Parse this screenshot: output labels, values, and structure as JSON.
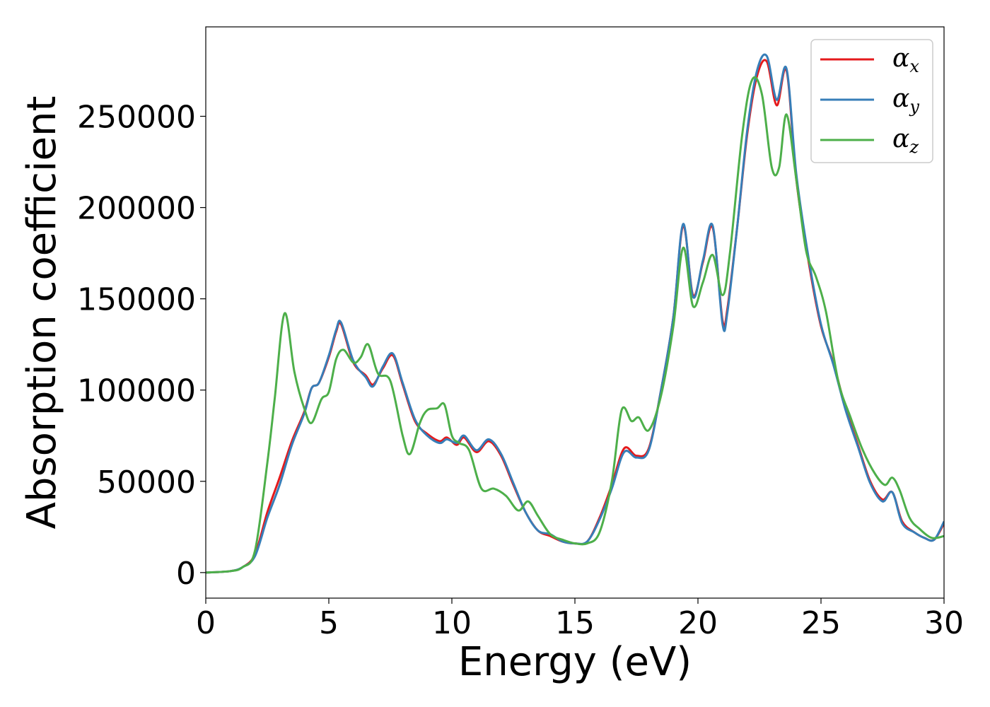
{
  "chart_data": {
    "type": "line",
    "title": "",
    "xlabel": "Energy (eV)",
    "ylabel": "Absorption coefficient",
    "xlim": [
      0,
      30
    ],
    "ylim": [
      -14000,
      299000
    ],
    "xticks": [
      0,
      5,
      10,
      15,
      20,
      25,
      30
    ],
    "xtick_labels": [
      "0",
      "5",
      "10",
      "15",
      "20",
      "25",
      "30"
    ],
    "yticks": [
      0,
      50000,
      100000,
      150000,
      200000,
      250000
    ],
    "ytick_labels": [
      "0",
      "50000",
      "100000",
      "150000",
      "200000",
      "250000"
    ],
    "grid": false,
    "legend_position": "top-right",
    "series": [
      {
        "name": "α_x",
        "base": "α",
        "sub": "x",
        "color": "#e41a1c",
        "x": [
          0,
          1,
          1.5,
          2,
          2.5,
          3,
          3.5,
          4,
          4.3,
          4.6,
          5,
          5.3,
          5.5,
          6,
          6.5,
          6.8,
          7.2,
          7.6,
          8,
          8.5,
          9,
          9.5,
          9.8,
          10.2,
          10.5,
          11,
          11.5,
          12,
          12.5,
          13,
          13.5,
          14,
          14.5,
          15,
          15.5,
          16,
          16.5,
          17,
          17.5,
          18,
          18.5,
          19,
          19.4,
          19.8,
          20.2,
          20.6,
          21,
          21.2,
          21.6,
          22,
          22.4,
          22.8,
          23.2,
          23.6,
          24,
          24.5,
          25,
          25.5,
          26,
          26.5,
          27,
          27.5,
          27.9,
          28.3,
          28.8,
          29.2,
          29.6,
          30
        ],
        "values": [
          0,
          800,
          3000,
          10000,
          33000,
          52000,
          72000,
          88000,
          101000,
          104000,
          118000,
          132000,
          136000,
          115000,
          108000,
          103000,
          112000,
          119000,
          103000,
          83000,
          76000,
          72000,
          74000,
          70000,
          74000,
          66000,
          72000,
          64000,
          48000,
          33000,
          23000,
          20000,
          17000,
          16000,
          17000,
          30000,
          48000,
          68000,
          64000,
          68000,
          100000,
          140000,
          190000,
          152000,
          170000,
          189000,
          138000,
          145000,
          190000,
          240000,
          272000,
          280000,
          256000,
          275000,
          215000,
          170000,
          135000,
          115000,
          90000,
          70000,
          50000,
          40000,
          44000,
          28000,
          22000,
          19000,
          18000,
          27000
        ]
      },
      {
        "name": "α_y",
        "base": "α",
        "sub": "y",
        "color": "#377eb8",
        "x": [
          0,
          1,
          1.5,
          2,
          2.5,
          3,
          3.5,
          4,
          4.3,
          4.6,
          5,
          5.3,
          5.5,
          6,
          6.5,
          6.8,
          7.2,
          7.6,
          8,
          8.5,
          9,
          9.5,
          9.8,
          10.2,
          10.5,
          11,
          11.5,
          12,
          12.5,
          13,
          13.5,
          14,
          14.5,
          15,
          15.5,
          16,
          16.5,
          17,
          17.5,
          18,
          18.5,
          19,
          19.4,
          19.8,
          20.2,
          20.6,
          21,
          21.2,
          21.6,
          22,
          22.4,
          22.8,
          23.2,
          23.6,
          24,
          24.5,
          25,
          25.5,
          26,
          26.5,
          27,
          27.5,
          27.9,
          28.3,
          28.8,
          29.2,
          29.6,
          30
        ],
        "values": [
          0,
          800,
          3000,
          9000,
          30000,
          48000,
          70000,
          87000,
          101000,
          104000,
          119000,
          133000,
          137000,
          116000,
          107000,
          102000,
          113000,
          120000,
          104000,
          84000,
          75000,
          71000,
          73000,
          71000,
          75000,
          67000,
          73000,
          65000,
          49000,
          33000,
          23000,
          21000,
          17000,
          16000,
          17000,
          29000,
          46000,
          66000,
          63000,
          67000,
          100000,
          140000,
          191000,
          151000,
          171000,
          190000,
          136000,
          143000,
          190000,
          242000,
          275000,
          283000,
          259000,
          276000,
          218000,
          172000,
          136000,
          114000,
          89000,
          69000,
          49000,
          39000,
          44000,
          27000,
          22000,
          19000,
          18000,
          28000
        ]
      },
      {
        "name": "α_z",
        "base": "α",
        "sub": "z",
        "color": "#4daf4a",
        "x": [
          0,
          1,
          1.5,
          2,
          2.5,
          2.8,
          3.2,
          3.6,
          4,
          4.3,
          4.7,
          5,
          5.3,
          5.6,
          6,
          6.3,
          6.6,
          7,
          7.5,
          8,
          8.3,
          8.7,
          9,
          9.4,
          9.7,
          10,
          10.3,
          10.7,
          11.2,
          11.7,
          12.2,
          12.7,
          13.1,
          13.5,
          14,
          14.5,
          15,
          15.5,
          16,
          16.5,
          16.9,
          17.3,
          17.6,
          18,
          18.5,
          19,
          19.4,
          19.8,
          20.2,
          20.6,
          21,
          21.3,
          21.8,
          22.2,
          22.6,
          23,
          23.3,
          23.6,
          24,
          24.4,
          24.8,
          25.2,
          25.7,
          26.2,
          26.7,
          27.2,
          27.6,
          27.9,
          28.2,
          28.6,
          29,
          29.5,
          30
        ],
        "values": [
          0,
          800,
          3000,
          12000,
          60000,
          95000,
          142000,
          110000,
          90000,
          82000,
          95000,
          99000,
          117000,
          122000,
          115000,
          118000,
          125000,
          109000,
          105000,
          75000,
          65000,
          82000,
          89000,
          90000,
          92000,
          75000,
          71000,
          67000,
          46000,
          46000,
          42000,
          34000,
          39000,
          31000,
          21000,
          18000,
          16000,
          16000,
          22000,
          50000,
          89000,
          83000,
          85000,
          78000,
          97000,
          135000,
          178000,
          146000,
          159000,
          174000,
          152000,
          175000,
          240000,
          270000,
          262000,
          222000,
          222000,
          251000,
          215000,
          176000,
          162000,
          143000,
          105000,
          85000,
          67000,
          54000,
          48000,
          52000,
          45000,
          30000,
          24000,
          19000,
          20000
        ]
      }
    ]
  }
}
